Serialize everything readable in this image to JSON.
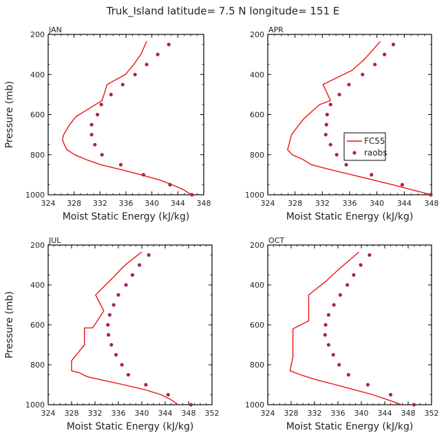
{
  "figure_title": "Truk_Island  latitude= 7.5 N longitude= 151 E",
  "colors": {
    "model": "#ee1111",
    "obs": "#aa2255",
    "axis": "#000000"
  },
  "legend_labels": {
    "model": "FC55",
    "obs": "raobs"
  },
  "chart_data": [
    {
      "type": "line",
      "title": "JAN",
      "xlabel": "Moist Static Energy (kJ/kg)",
      "ylabel": "Pressure (mb)",
      "xlim": [
        324,
        348
      ],
      "ylim": [
        1000,
        200
      ],
      "xticks": [
        324,
        328,
        332,
        336,
        340,
        344,
        348
      ],
      "yticks": [
        200,
        400,
        600,
        800,
        1000
      ],
      "legend": false,
      "series": [
        {
          "name": "FC55",
          "style": "line",
          "points": [
            [
              346.1,
              1000
            ],
            [
              344.9,
              975
            ],
            [
              343.1,
              950
            ],
            [
              341.1,
              925
            ],
            [
              338.3,
              900
            ],
            [
              335.3,
              875
            ],
            [
              332.1,
              850
            ],
            [
              329.9,
              825
            ],
            [
              328.1,
              800
            ],
            [
              326.9,
              775
            ],
            [
              326.5,
              750
            ],
            [
              326.2,
              725
            ],
            [
              326.4,
              700
            ],
            [
              327.3,
              650
            ],
            [
              328.3,
              610
            ],
            [
              330.3,
              570
            ],
            [
              332.3,
              530
            ],
            [
              333.1,
              450
            ],
            [
              335.9,
              400
            ],
            [
              337.2,
              350
            ],
            [
              338.3,
              300
            ],
            [
              339.2,
              235
            ]
          ]
        },
        {
          "name": "raobs",
          "style": "dots",
          "points": [
            [
              346.2,
              1000
            ],
            [
              342.8,
              950
            ],
            [
              338.7,
              900
            ],
            [
              335.2,
              850
            ],
            [
              332.3,
              800
            ],
            [
              331.2,
              750
            ],
            [
              330.7,
              700
            ],
            [
              330.7,
              650
            ],
            [
              331.6,
              600
            ],
            [
              332.2,
              550
            ],
            [
              333.7,
              500
            ],
            [
              335.5,
              450
            ],
            [
              337.4,
              400
            ],
            [
              339.2,
              350
            ],
            [
              340.9,
              300
            ],
            [
              342.6,
              250
            ]
          ]
        }
      ]
    },
    {
      "type": "line",
      "title": "APR",
      "xlabel": "Moist Static Energy (kJ/kg)",
      "ylabel": "",
      "xlim": [
        324,
        348
      ],
      "ylim": [
        1000,
        200
      ],
      "xticks": [
        324,
        328,
        332,
        336,
        340,
        344,
        348
      ],
      "yticks": [
        200,
        400,
        600,
        800,
        1000
      ],
      "legend": true,
      "series": [
        {
          "name": "FC55",
          "style": "line",
          "points": [
            [
              348.0,
              1000
            ],
            [
              345.1,
              975
            ],
            [
              342.3,
              950
            ],
            [
              339.3,
              925
            ],
            [
              336.3,
              900
            ],
            [
              333.2,
              875
            ],
            [
              330.4,
              850
            ],
            [
              329.2,
              825
            ],
            [
              327.6,
              800
            ],
            [
              326.9,
              775
            ],
            [
              327.5,
              700
            ],
            [
              328.6,
              650
            ],
            [
              329.3,
              620
            ],
            [
              331.6,
              550
            ],
            [
              333.2,
              530
            ],
            [
              332.1,
              450
            ],
            [
              336.3,
              380
            ],
            [
              338.0,
              330
            ],
            [
              339.2,
              285
            ],
            [
              340.5,
              235
            ]
          ]
        },
        {
          "name": "raobs",
          "style": "dots",
          "points": [
            [
              347.9,
              1000
            ],
            [
              343.7,
              950
            ],
            [
              339.2,
              900
            ],
            [
              335.5,
              850
            ],
            [
              334.1,
              800
            ],
            [
              333.2,
              750
            ],
            [
              332.5,
              700
            ],
            [
              332.6,
              650
            ],
            [
              332.7,
              600
            ],
            [
              333.2,
              550
            ],
            [
              334.5,
              500
            ],
            [
              335.9,
              450
            ],
            [
              337.9,
              400
            ],
            [
              339.7,
              350
            ],
            [
              341.1,
              300
            ],
            [
              342.4,
              250
            ]
          ]
        }
      ]
    },
    {
      "type": "line",
      "title": "JUL",
      "xlabel": "Moist Static Energy (kJ/kg)",
      "ylabel": "Pressure (mb)",
      "xlim": [
        324,
        352
      ],
      "ylim": [
        1000,
        200
      ],
      "xticks": [
        324,
        328,
        332,
        336,
        340,
        344,
        348,
        352
      ],
      "yticks": [
        200,
        400,
        600,
        800,
        1000
      ],
      "legend": false,
      "series": [
        {
          "name": "FC55",
          "style": "line",
          "points": [
            [
              346.2,
              1000
            ],
            [
              345.0,
              975
            ],
            [
              343.3,
              950
            ],
            [
              340.6,
              925
            ],
            [
              336.9,
              900
            ],
            [
              333.0,
              875
            ],
            [
              330.7,
              860
            ],
            [
              329.3,
              840
            ],
            [
              328.0,
              830
            ],
            [
              328.0,
              780
            ],
            [
              330.2,
              700
            ],
            [
              330.2,
              615
            ],
            [
              331.6,
              615
            ],
            [
              333.5,
              530
            ],
            [
              332.1,
              450
            ],
            [
              335.2,
              360
            ],
            [
              336.8,
              310
            ],
            [
              338.0,
              280
            ],
            [
              340.0,
              235
            ]
          ]
        },
        {
          "name": "raobs",
          "style": "dots",
          "points": [
            [
              348.4,
              1000
            ],
            [
              344.5,
              950
            ],
            [
              340.7,
              900
            ],
            [
              337.7,
              850
            ],
            [
              336.6,
              800
            ],
            [
              335.6,
              750
            ],
            [
              334.8,
              700
            ],
            [
              334.3,
              650
            ],
            [
              334.2,
              600
            ],
            [
              334.5,
              550
            ],
            [
              335.2,
              500
            ],
            [
              336.0,
              450
            ],
            [
              337.3,
              400
            ],
            [
              338.4,
              350
            ],
            [
              339.6,
              300
            ],
            [
              341.2,
              250
            ]
          ]
        }
      ]
    },
    {
      "type": "line",
      "title": "OCT",
      "xlabel": "Moist Static Energy (kJ/kg)",
      "ylabel": "",
      "xlim": [
        324,
        352
      ],
      "ylim": [
        1000,
        200
      ],
      "xticks": [
        324,
        328,
        332,
        336,
        340,
        344,
        348,
        352
      ],
      "yticks": [
        200,
        400,
        600,
        800,
        1000
      ],
      "legend": false,
      "series": [
        {
          "name": "FC55",
          "style": "line",
          "points": [
            [
              346.9,
              1000
            ],
            [
              344.5,
              975
            ],
            [
              342.0,
              950
            ],
            [
              338.8,
              925
            ],
            [
              335.6,
              900
            ],
            [
              332.3,
              875
            ],
            [
              329.6,
              850
            ],
            [
              327.8,
              830
            ],
            [
              328.3,
              760
            ],
            [
              328.3,
              680
            ],
            [
              328.3,
              620
            ],
            [
              331.0,
              580
            ],
            [
              331.0,
              450
            ],
            [
              334.0,
              380
            ],
            [
              336.2,
              320
            ],
            [
              337.8,
              280
            ],
            [
              339.6,
              235
            ]
          ]
        },
        {
          "name": "raobs",
          "style": "dots",
          "points": [
            [
              349.0,
              1000
            ],
            [
              345.0,
              950
            ],
            [
              341.1,
              900
            ],
            [
              337.8,
              850
            ],
            [
              336.2,
              800
            ],
            [
              335.2,
              750
            ],
            [
              334.4,
              700
            ],
            [
              333.8,
              650
            ],
            [
              333.9,
              600
            ],
            [
              334.4,
              550
            ],
            [
              335.3,
              500
            ],
            [
              336.4,
              450
            ],
            [
              337.6,
              400
            ],
            [
              338.7,
              350
            ],
            [
              339.9,
              300
            ],
            [
              341.4,
              250
            ]
          ]
        }
      ]
    }
  ]
}
